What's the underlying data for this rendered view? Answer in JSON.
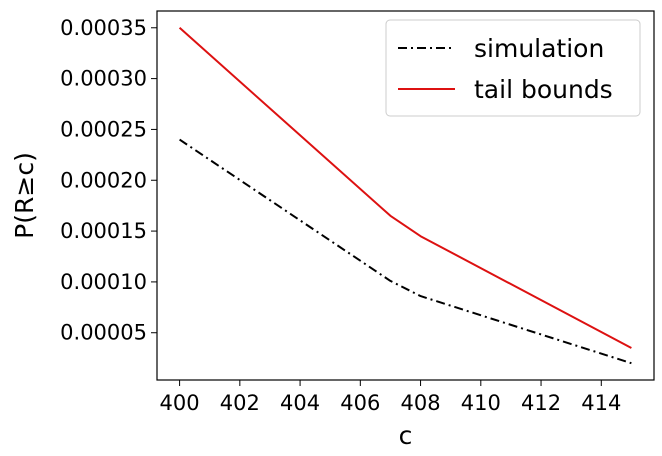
{
  "chart_data": {
    "type": "line",
    "title": "",
    "xlabel": "c",
    "ylabel": "P(R≥c)",
    "xlim": [
      399.25,
      415.75
    ],
    "ylim": [
      3.5e-06,
      0.0003665
    ],
    "xticks": [
      400,
      402,
      404,
      406,
      408,
      410,
      412,
      414
    ],
    "xtick_labels": [
      "400",
      "402",
      "404",
      "406",
      "408",
      "410",
      "412",
      "414"
    ],
    "yticks": [
      5e-05,
      0.0001,
      0.00015,
      0.0002,
      0.00025,
      0.0003,
      0.00035
    ],
    "ytick_labels": [
      "0.00005",
      "0.00010",
      "0.00015",
      "0.00020",
      "0.00025",
      "0.00030",
      "0.00035"
    ],
    "grid": false,
    "legend": {
      "position": "top-right"
    },
    "series": [
      {
        "name": "simulation",
        "color": "#000000",
        "dash": "dash-dot",
        "x": [
          400,
          407,
          408,
          415
        ],
        "y": [
          0.00024,
          0.000101,
          8.6e-05,
          2e-05
        ]
      },
      {
        "name": "tail bounds",
        "color": "#dd1111",
        "dash": "solid",
        "x": [
          400,
          407,
          408,
          415
        ],
        "y": [
          0.00035,
          0.000165,
          0.000145,
          3.5e-05
        ]
      }
    ]
  }
}
